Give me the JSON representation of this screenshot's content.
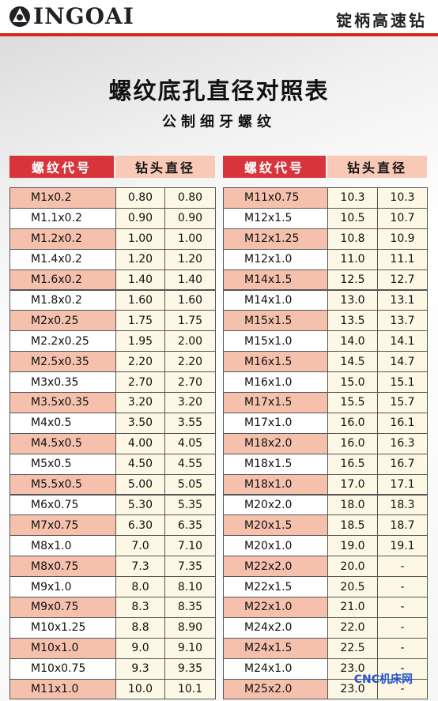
{
  "header": {
    "logo": "INGOAI",
    "slogan": "锭柄高速钻"
  },
  "title": "螺纹底孔直径对照表",
  "subtitle": "公制细牙螺纹",
  "tables": [
    {
      "headers": [
        "螺纹代号",
        "钻头直径"
      ],
      "rows": [
        [
          "M1x0.2",
          "0.80",
          "0.80"
        ],
        [
          "M1.1x0.2",
          "0.90",
          "0.90"
        ],
        [
          "M1.2x0.2",
          "1.00",
          "1.00"
        ],
        [
          "M1.4x0.2",
          "1.20",
          "1.20"
        ],
        [
          "M1.6x0.2",
          "1.40",
          "1.40"
        ],
        [
          "M1.8x0.2",
          "1.60",
          "1.60"
        ],
        [
          "M2x0.25",
          "1.75",
          "1.75"
        ],
        [
          "M2.2x0.25",
          "1.95",
          "2.00"
        ],
        [
          "M2.5x0.35",
          "2.20",
          "2.20"
        ],
        [
          "M3x0.35",
          "2.70",
          "2.70"
        ],
        [
          "M3.5x0.35",
          "3.20",
          "3.20"
        ],
        [
          "M4x0.5",
          "3.50",
          "3.55"
        ],
        [
          "M4.5x0.5",
          "4.00",
          "4.05"
        ],
        [
          "M5x0.5",
          "4.50",
          "4.55"
        ],
        [
          "M5.5x0.5",
          "5.00",
          "5.05"
        ],
        [
          "M6x0.75",
          "5.30",
          "5.35"
        ],
        [
          "M7x0.75",
          "6.30",
          "6.35"
        ],
        [
          "M8x1.0",
          "7.0",
          "7.10"
        ],
        [
          "M8x0.75",
          "7.3",
          "7.35"
        ],
        [
          "M9x1.0",
          "8.0",
          "8.10"
        ],
        [
          "M9x0.75",
          "8.3",
          "8.35"
        ],
        [
          "M10x1.25",
          "8.8",
          "8.90"
        ],
        [
          "M10x1.0",
          "9.0",
          "9.10"
        ],
        [
          "M10x0.75",
          "9.3",
          "9.35"
        ],
        [
          "M11x1.0",
          "10.0",
          "10.1"
        ]
      ]
    },
    {
      "headers": [
        "螺纹代号",
        "钻头直径"
      ],
      "rows": [
        [
          "M11x0.75",
          "10.3",
          "10.3"
        ],
        [
          "M12x1.5",
          "10.5",
          "10.7"
        ],
        [
          "M12x1.25",
          "10.8",
          "10.9"
        ],
        [
          "M12x1.0",
          "11.0",
          "11.1"
        ],
        [
          "M14x1.5",
          "12.5",
          "12.7"
        ],
        [
          "M14x1.0",
          "13.0",
          "13.1"
        ],
        [
          "M15x1.5",
          "13.5",
          "13.7"
        ],
        [
          "M15x1.0",
          "14.0",
          "14.1"
        ],
        [
          "M16x1.5",
          "14.5",
          "14.7"
        ],
        [
          "M16x1.0",
          "15.0",
          "15.1"
        ],
        [
          "M17x1.5",
          "15.5",
          "15.7"
        ],
        [
          "M17x1.0",
          "16.0",
          "16.1"
        ],
        [
          "M18x2.0",
          "16.0",
          "16.3"
        ],
        [
          "M18x1.5",
          "16.5",
          "16.7"
        ],
        [
          "M18x1.0",
          "17.0",
          "17.1"
        ],
        [
          "M20x2.0",
          "18.0",
          "18.3"
        ],
        [
          "M20x1.5",
          "18.5",
          "18.7"
        ],
        [
          "M20x1.0",
          "19.0",
          "19.1"
        ],
        [
          "M22x2.0",
          "20.0",
          "-"
        ],
        [
          "M22x1.5",
          "20.5",
          "-"
        ],
        [
          "M22x1.0",
          "21.0",
          "-"
        ],
        [
          "M24x2.0",
          "22.0",
          "-"
        ],
        [
          "M24x1.5",
          "22.5",
          "-"
        ],
        [
          "M24x1.0",
          "23.0",
          "-"
        ],
        [
          "M25x2.0",
          "23.0",
          "-"
        ]
      ]
    }
  ],
  "watermark": "CNC机床网"
}
